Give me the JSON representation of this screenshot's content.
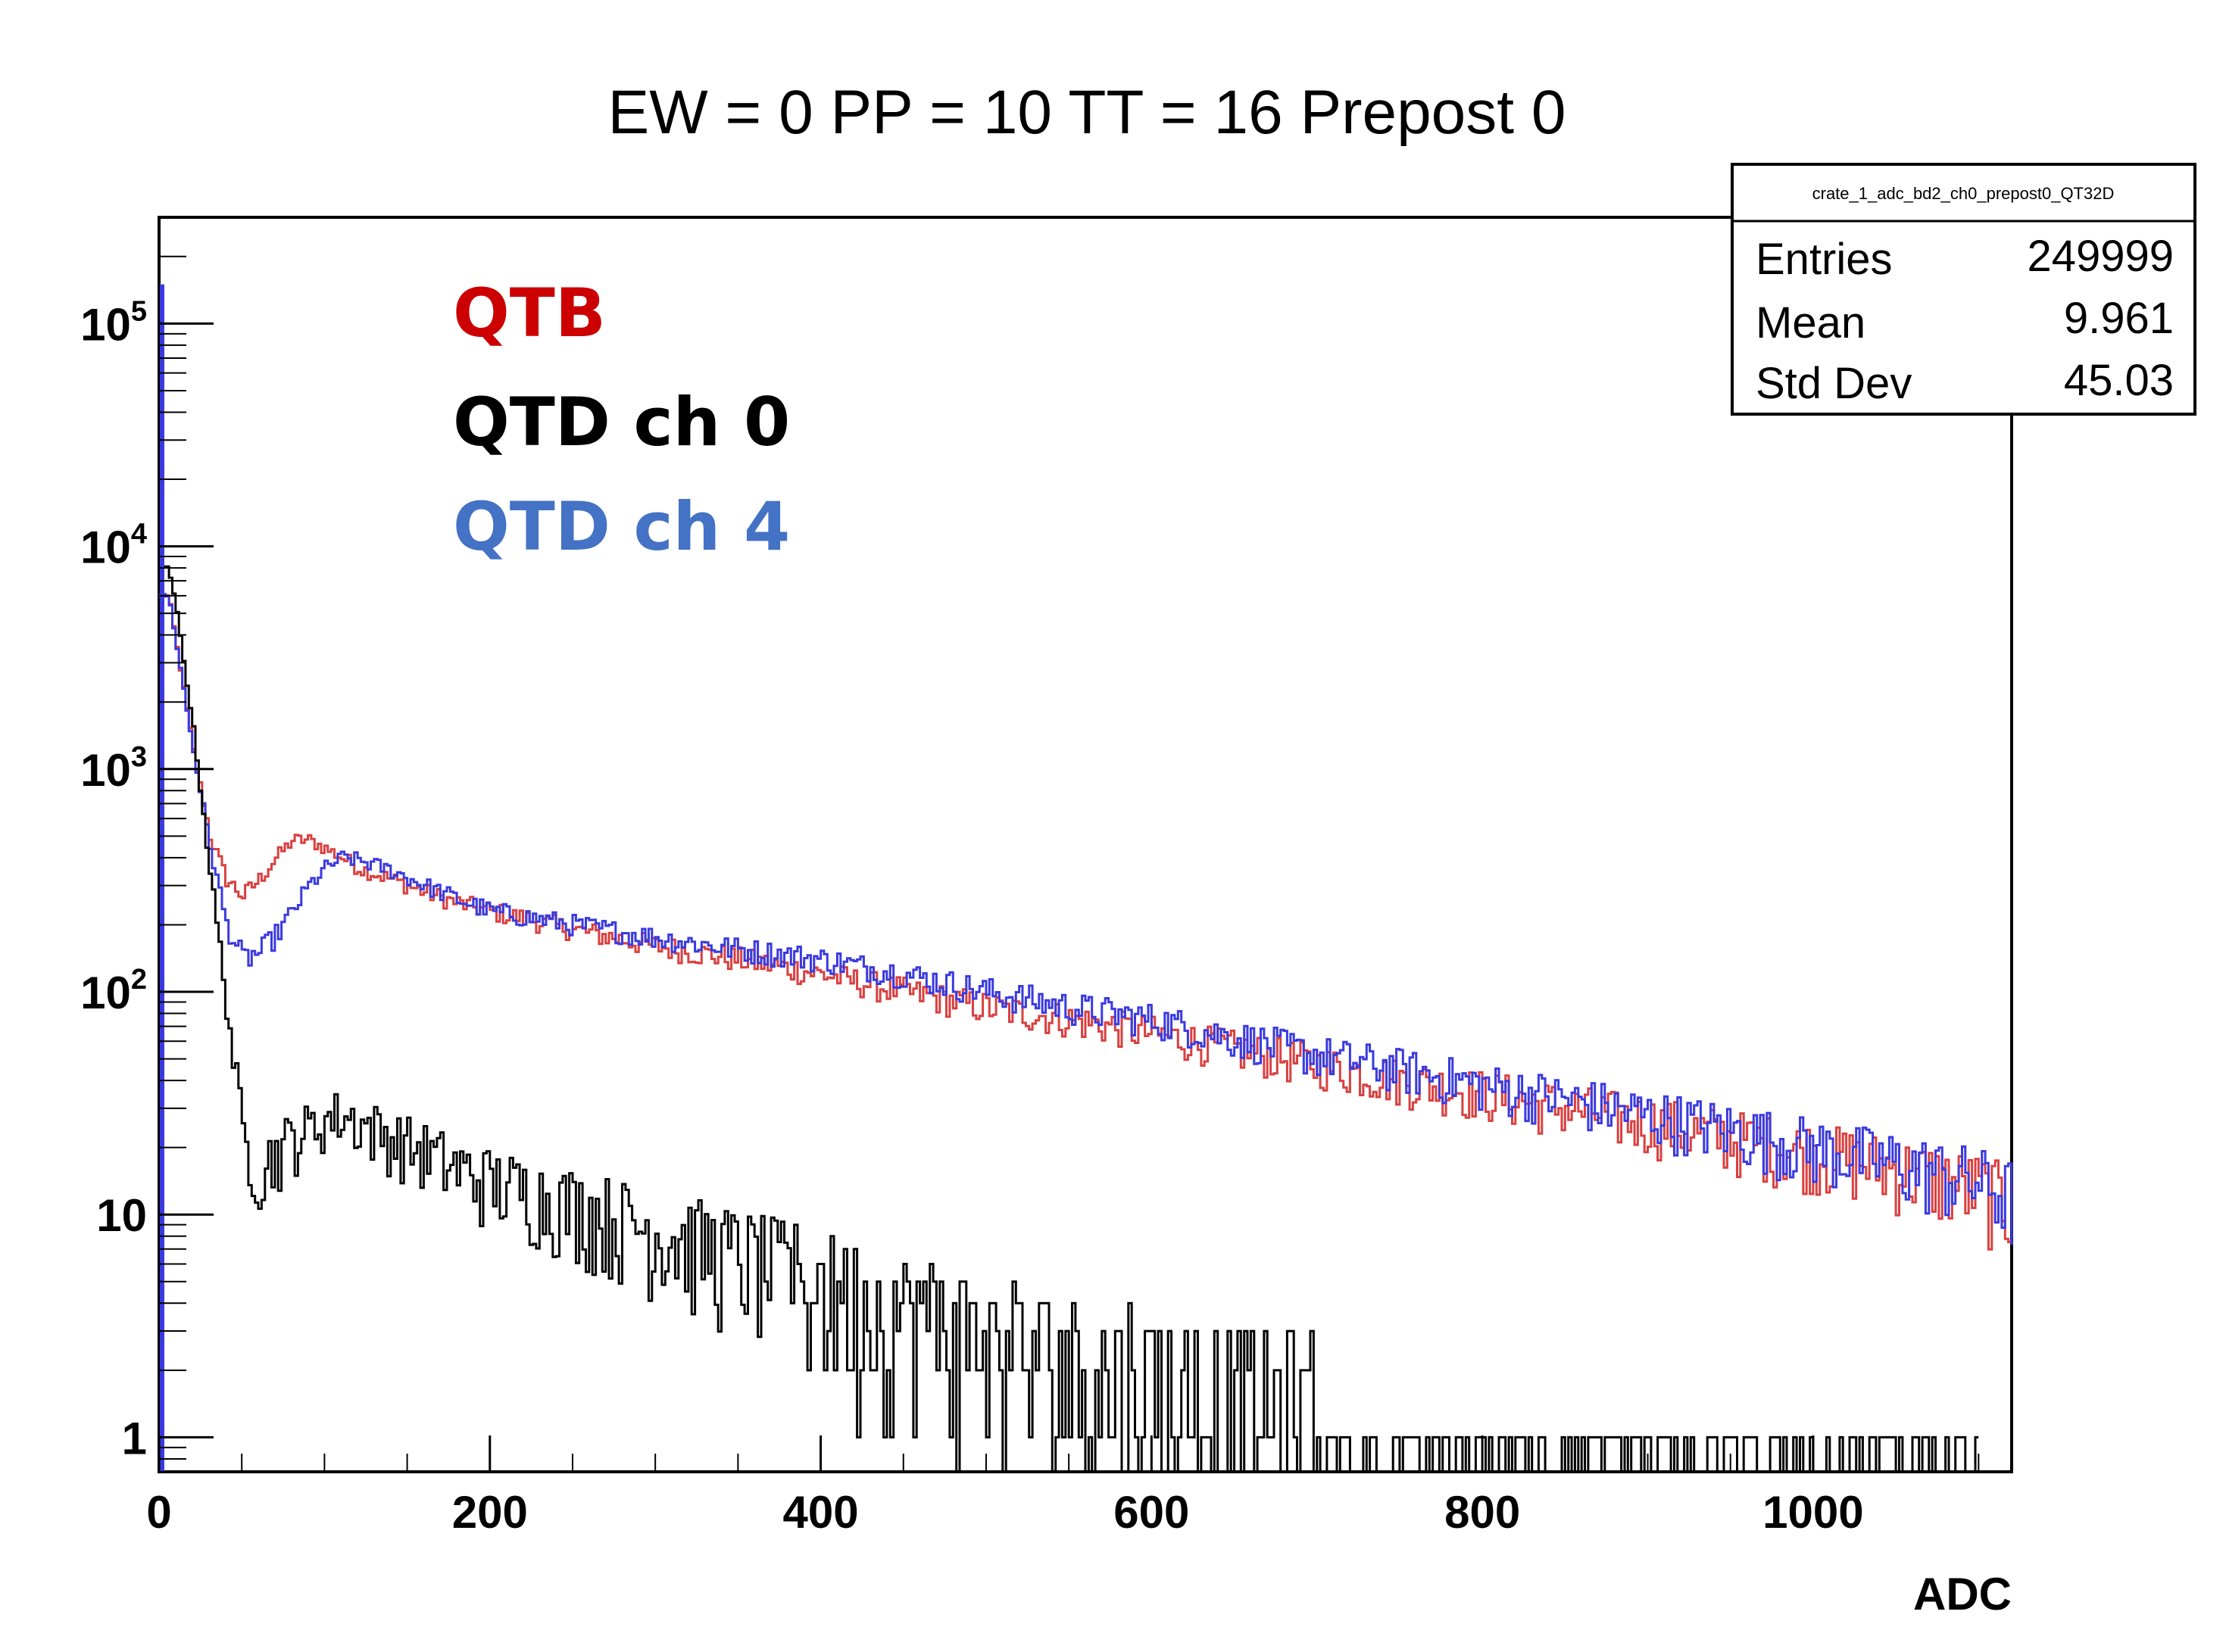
{
  "chart_data": {
    "type": "line",
    "title": "EW = 0 PP = 10 TT = 16 Prepost 0",
    "xlabel": "ADC",
    "ylabel": "",
    "xlim": [
      0,
      1120
    ],
    "ylog": true,
    "ylim": [
      0.7,
      300000
    ],
    "x_ticks": [
      0,
      200,
      400,
      600,
      800,
      1000
    ],
    "x_tick_labels": [
      "0",
      "200",
      "400",
      "600",
      "800",
      "1000"
    ],
    "y_ticks": [
      1,
      10,
      100,
      1000,
      10000,
      100000
    ],
    "y_tick_labels": [
      {
        "base": "1",
        "exp": ""
      },
      {
        "base": "10",
        "exp": ""
      },
      {
        "base": "10",
        "exp": "2"
      },
      {
        "base": "10",
        "exp": "3"
      },
      {
        "base": "10",
        "exp": "4"
      },
      {
        "base": "10",
        "exp": "5"
      }
    ],
    "legend": [
      {
        "text": "QTB",
        "color": "#cc0000"
      },
      {
        "text": "QTD ch 0",
        "color": "#000000"
      },
      {
        "text": "QTD ch 4",
        "color": "#4472c4"
      }
    ],
    "stats_box": {
      "name": "crate_1_adc_bd2_ch0_prepost0_QT32D",
      "rows": [
        {
          "key": "Entries",
          "value": "249999"
        },
        {
          "key": "Mean",
          "value": "9.961"
        },
        {
          "key": "Std Dev",
          "value": "45.03"
        }
      ]
    },
    "series": [
      {
        "name": "QTB",
        "color": "#d94040",
        "x": [
          0,
          5,
          10,
          20,
          30,
          40,
          50,
          60,
          70,
          80,
          90,
          100,
          110,
          120,
          140,
          160,
          180,
          200,
          250,
          300,
          350,
          400,
          450,
          500,
          550,
          600,
          650,
          700,
          750,
          800,
          850,
          900,
          950,
          1000,
          1050,
          1100,
          1120
        ],
        "y": [
          6000,
          6000,
          3500,
          1200,
          500,
          320,
          270,
          320,
          400,
          480,
          480,
          440,
          400,
          360,
          320,
          280,
          250,
          230,
          190,
          160,
          140,
          120,
          100,
          85,
          75,
          65,
          55,
          47,
          40,
          35,
          30,
          26,
          22,
          19,
          16,
          13,
          11
        ]
      },
      {
        "name": "QTD ch 4",
        "color": "#3a3ae0",
        "x": [
          0,
          5,
          10,
          20,
          30,
          40,
          50,
          60,
          70,
          80,
          90,
          100,
          110,
          120,
          140,
          160,
          180,
          200,
          250,
          300,
          350,
          400,
          450,
          500,
          550,
          600,
          650,
          700,
          750,
          800,
          850,
          900,
          950,
          1000,
          1050,
          1100,
          1120
        ],
        "y": [
          6000,
          6000,
          3500,
          1200,
          450,
          200,
          140,
          150,
          180,
          230,
          300,
          360,
          400,
          390,
          350,
          300,
          260,
          230,
          200,
          175,
          155,
          140,
          120,
          100,
          85,
          75,
          62,
          52,
          45,
          38,
          33,
          28,
          24,
          20,
          17,
          14,
          12
        ]
      },
      {
        "name": "QTD ch 0",
        "color": "#000000",
        "x": [
          0,
          5,
          10,
          20,
          30,
          40,
          50,
          60,
          70,
          80,
          90,
          100,
          110,
          120,
          140,
          160,
          180,
          200,
          250,
          300,
          350,
          400,
          450,
          500,
          550,
          600,
          650,
          700,
          750,
          800,
          850,
          900,
          950,
          1000,
          1050,
          1100
        ],
        "y": [
          8000,
          8000,
          5000,
          1500,
          350,
          90,
          22,
          16,
          19,
          22,
          24,
          27,
          28,
          26,
          22,
          19,
          16,
          14,
          11,
          8.5,
          6.5,
          5,
          3.8,
          2.8,
          2.2,
          1.8,
          1.5,
          1.3,
          1.15,
          1.05,
          1.0,
          1.0,
          1.0,
          1.0,
          1.0,
          1.0
        ]
      }
    ]
  }
}
